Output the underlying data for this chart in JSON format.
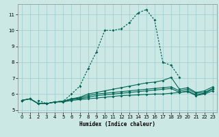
{
  "xlabel": "Humidex (Indice chaleur)",
  "bg_color": "#cce8e4",
  "grid_color": "#99cccc",
  "line_color": "#006655",
  "xlim": [
    -0.5,
    23.5
  ],
  "ylim": [
    4.85,
    11.65
  ],
  "xticks": [
    0,
    1,
    2,
    3,
    4,
    5,
    6,
    7,
    8,
    9,
    10,
    11,
    12,
    13,
    14,
    15,
    16,
    17,
    18,
    19,
    20,
    21,
    22,
    23
  ],
  "yticks": [
    5,
    6,
    7,
    8,
    9,
    10,
    11
  ],
  "curve_main_x": [
    2,
    3,
    4,
    5,
    6,
    7,
    8,
    9,
    10,
    11,
    12,
    13,
    14,
    15,
    16,
    17,
    18,
    19
  ],
  "curve_main_y": [
    5.6,
    5.4,
    5.5,
    5.55,
    6.0,
    6.5,
    7.6,
    8.65,
    10.0,
    10.0,
    10.1,
    10.5,
    11.1,
    11.3,
    10.65,
    8.0,
    7.8,
    7.05
  ],
  "curve_a_x": [
    0,
    1,
    2,
    3,
    4,
    5,
    6,
    7,
    8,
    9,
    10,
    11,
    12,
    13,
    14,
    15,
    16,
    17,
    18,
    19,
    20,
    21,
    22,
    23
  ],
  "curve_a_y": [
    5.6,
    5.7,
    5.4,
    5.4,
    5.5,
    5.5,
    5.6,
    5.65,
    5.7,
    5.75,
    5.8,
    5.85,
    5.9,
    5.92,
    5.95,
    5.97,
    6.0,
    6.0,
    6.05,
    6.1,
    6.15,
    5.9,
    6.0,
    6.2
  ],
  "curve_b_x": [
    0,
    1,
    2,
    3,
    4,
    5,
    6,
    7,
    8,
    9,
    10,
    11,
    12,
    13,
    14,
    15,
    16,
    17,
    18,
    19,
    20,
    21,
    22,
    23
  ],
  "curve_b_y": [
    5.6,
    5.7,
    5.4,
    5.4,
    5.5,
    5.55,
    5.65,
    5.7,
    5.8,
    5.9,
    5.95,
    6.0,
    6.05,
    6.1,
    6.15,
    6.2,
    6.25,
    6.3,
    6.35,
    6.1,
    6.2,
    5.95,
    6.05,
    6.3
  ],
  "curve_c_x": [
    0,
    1,
    2,
    3,
    4,
    5,
    6,
    7,
    8,
    9,
    10,
    11,
    12,
    13,
    14,
    15,
    16,
    17,
    18,
    19,
    20,
    21,
    22,
    23
  ],
  "curve_c_y": [
    5.6,
    5.7,
    5.4,
    5.4,
    5.5,
    5.55,
    5.7,
    5.75,
    5.9,
    6.0,
    6.05,
    6.1,
    6.15,
    6.2,
    6.25,
    6.3,
    6.35,
    6.4,
    6.45,
    6.2,
    6.3,
    6.05,
    6.1,
    6.35
  ],
  "curve_d_x": [
    0,
    1,
    2,
    3,
    4,
    5,
    6,
    7,
    8,
    9,
    10,
    11,
    12,
    13,
    14,
    15,
    16,
    17,
    18,
    19,
    20,
    21,
    22,
    23
  ],
  "curve_d_y": [
    5.6,
    5.7,
    5.4,
    5.4,
    5.5,
    5.55,
    5.7,
    5.8,
    6.0,
    6.1,
    6.2,
    6.3,
    6.4,
    6.5,
    6.6,
    6.7,
    6.75,
    6.85,
    7.05,
    6.3,
    6.4,
    6.1,
    6.2,
    6.45
  ]
}
